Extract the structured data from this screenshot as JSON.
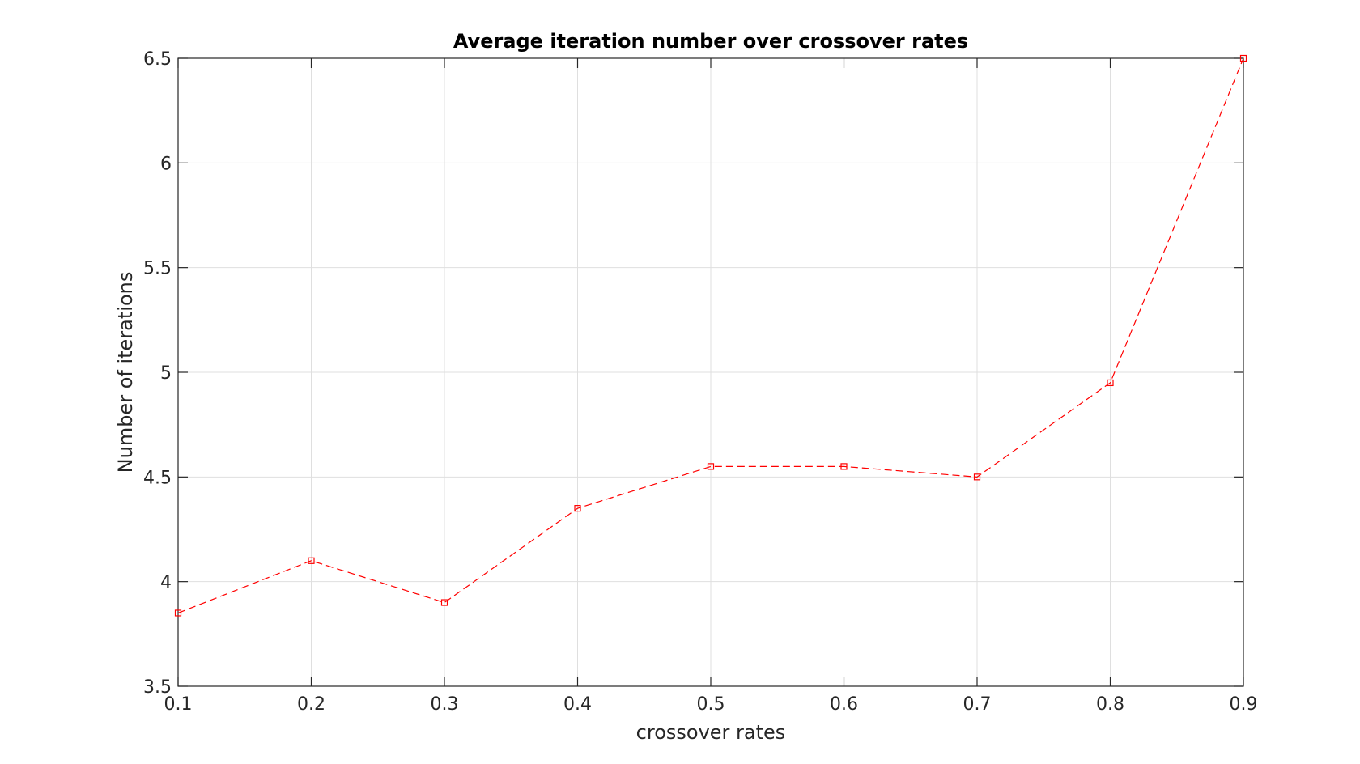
{
  "chart_data": {
    "type": "line",
    "title": "Average iteration number over crossover rates",
    "xlabel": "crossover rates",
    "ylabel": "Number of iterations",
    "x": [
      0.1,
      0.2,
      0.3,
      0.4,
      0.5,
      0.6,
      0.7,
      0.8,
      0.9
    ],
    "series": [
      {
        "values": [
          3.85,
          4.1,
          3.9,
          4.35,
          4.55,
          4.55,
          4.5,
          4.95,
          6.5
        ],
        "color": "#ff0000",
        "line_style": "dashed",
        "marker": "square"
      }
    ],
    "xlim": [
      0.1,
      0.9
    ],
    "ylim": [
      3.5,
      6.5
    ],
    "xticks": [
      "0.1",
      "0.2",
      "0.3",
      "0.4",
      "0.5",
      "0.6",
      "0.7",
      "0.8",
      "0.9"
    ],
    "yticks": [
      "3.5",
      "4",
      "4.5",
      "5",
      "5.5",
      "6",
      "6.5"
    ],
    "grid": true,
    "legend": false
  }
}
